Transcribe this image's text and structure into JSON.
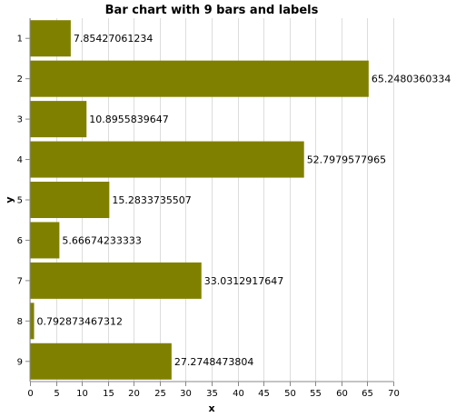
{
  "chart_data": {
    "type": "bar",
    "orientation": "horizontal",
    "title": "Bar chart with 9 bars and labels",
    "xlabel": "x",
    "ylabel": "y",
    "categories": [
      "1",
      "2",
      "3",
      "4",
      "5",
      "6",
      "7",
      "8",
      "9"
    ],
    "values": [
      7.85427061234,
      65.2480360334,
      10.8955839647,
      52.7979577965,
      15.2833735507,
      5.66674233333,
      33.0312917647,
      0.792873467312,
      27.2748473804
    ],
    "data_labels": [
      "7.85427061234",
      "65.2480360334",
      "10.8955839647",
      "52.7979577965",
      "15.2833735507",
      "5.66674233333",
      "33.0312917647",
      "0.792873467312",
      "27.2748473804"
    ],
    "xlim": [
      0,
      70
    ],
    "xticks": [
      0,
      5,
      10,
      15,
      20,
      25,
      30,
      35,
      40,
      45,
      50,
      55,
      60,
      65,
      70
    ],
    "grid": true,
    "colors": {
      "bar": "#808000"
    }
  }
}
